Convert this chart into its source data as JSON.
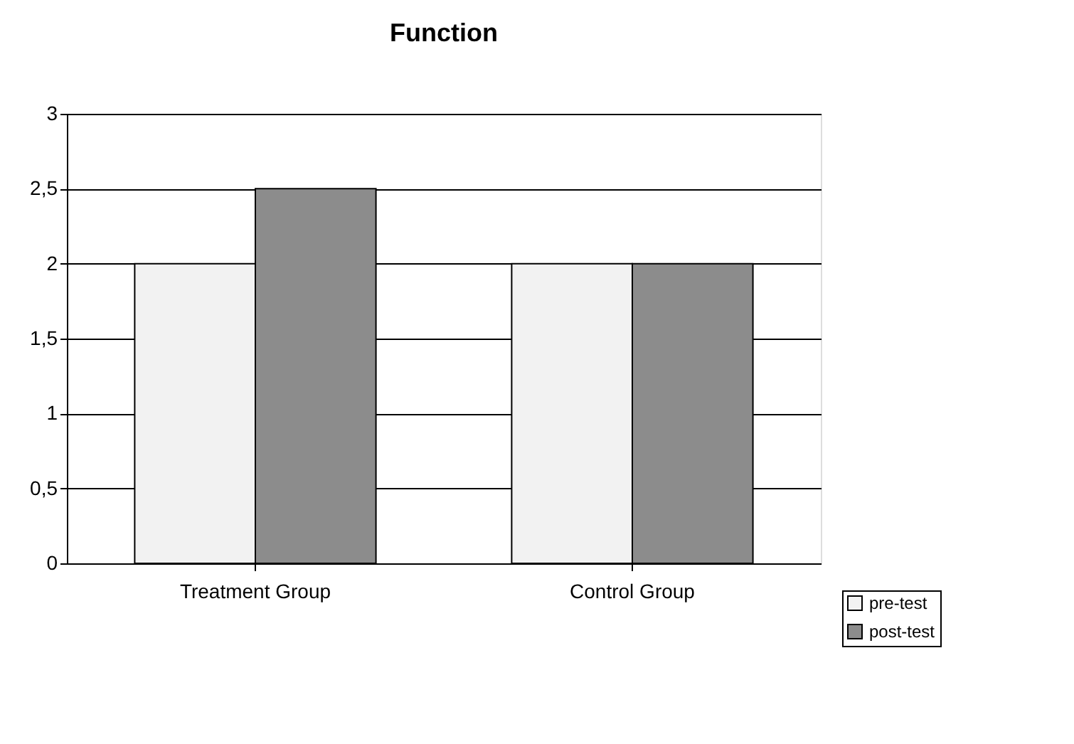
{
  "chart_data": {
    "type": "bar",
    "title": "Function",
    "categories": [
      "Treatment Group",
      "Control Group"
    ],
    "series": [
      {
        "name": "pre-test",
        "color": "#f2f2f2",
        "values": [
          2,
          2
        ]
      },
      {
        "name": "post-test",
        "color": "#8c8c8c",
        "values": [
          2.5,
          2
        ]
      }
    ],
    "ylim": [
      0,
      3
    ],
    "yticks": [
      0,
      {
        "value": 0.5,
        "label": "0,5"
      },
      1,
      {
        "value": 1.5,
        "label": "1,5"
      },
      2,
      {
        "value": 2.5,
        "label": "2,5"
      },
      3
    ],
    "grid": "y",
    "legend": "bottom right"
  }
}
